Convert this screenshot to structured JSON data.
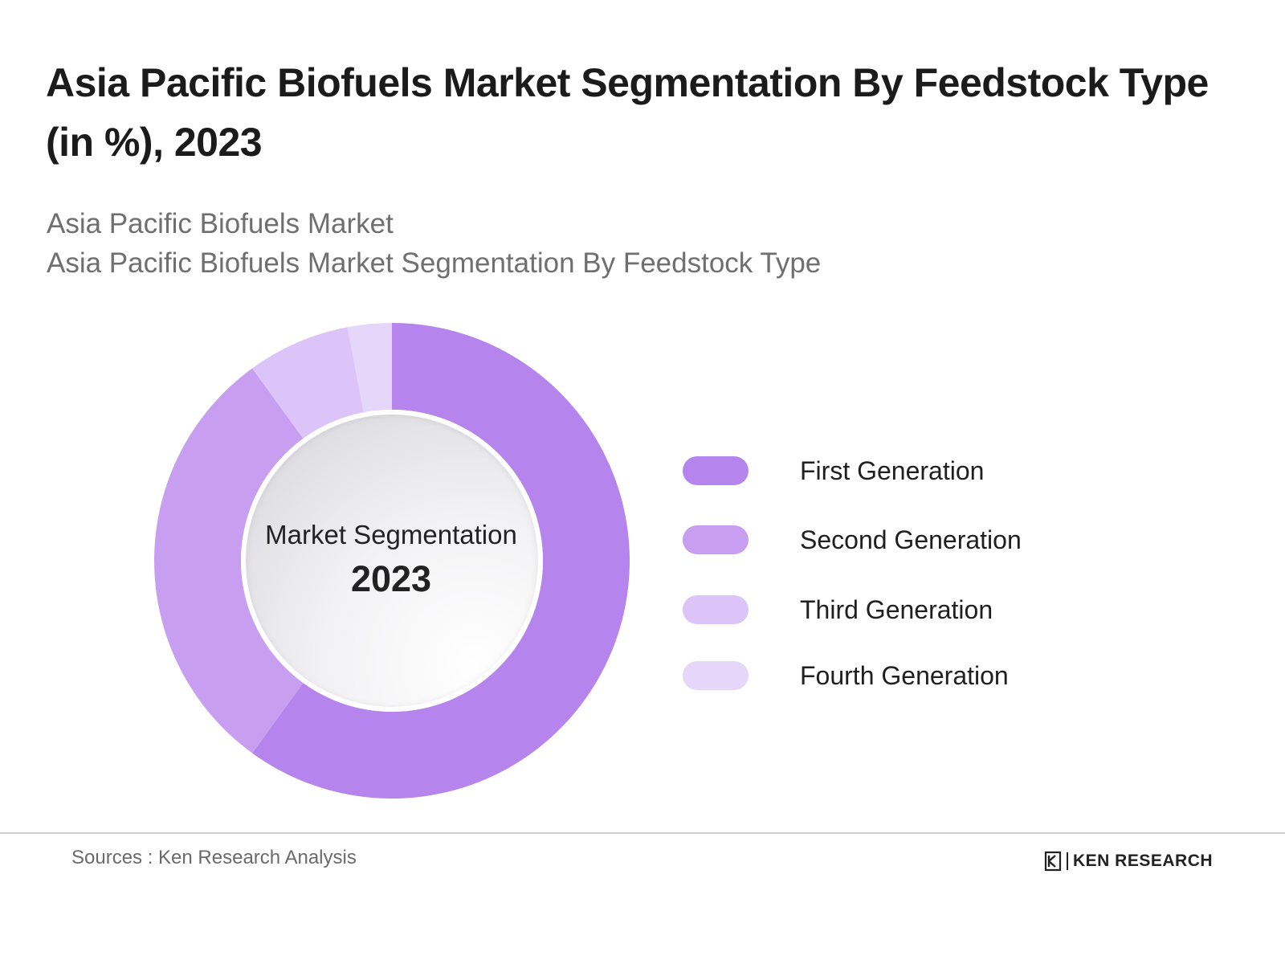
{
  "header": {
    "title": "Asia Pacific Biofuels Market Segmentation By Feedstock Type (in %), 2023",
    "subtitle_1": "Asia Pacific Biofuels Market",
    "subtitle_2": "Asia Pacific Biofuels Market Segmentation By Feedstock Type"
  },
  "chart_data": {
    "type": "pie",
    "donut": true,
    "categories": [
      "First Generation",
      "Second Generation",
      "Third Generation",
      "Fourth Generation"
    ],
    "values": [
      60,
      30,
      7,
      3
    ],
    "colors": [
      "#b584ec",
      "#c89ff0",
      "#dcc4f8",
      "#e6d6fa"
    ],
    "center_label": {
      "line_1": "Market Segmentation",
      "line_2": "2023"
    },
    "legend_position": "right"
  },
  "footer": {
    "source": "Sources : Ken Research Analysis",
    "logo_text": "KEN RESEARCH"
  }
}
